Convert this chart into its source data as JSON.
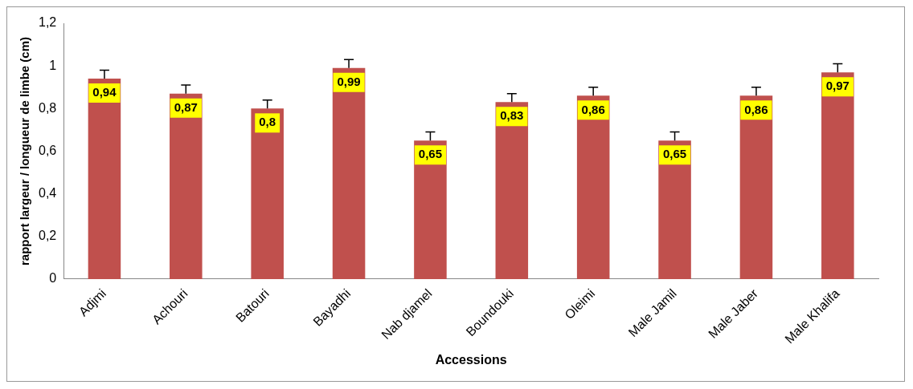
{
  "chart_data": {
    "type": "bar",
    "ylabel": "rapport largeur / longueur de limbe (cm)",
    "xlabel": "Accessions",
    "categories": [
      "Adjmi",
      "Achouri",
      "Batouri",
      "Bayadhi",
      "Nab djamel",
      "Boundouki",
      "Oleimi",
      "Male Jamil",
      "Male Jaber",
      "Male Khalifa"
    ],
    "values": [
      0.94,
      0.87,
      0.8,
      0.99,
      0.65,
      0.83,
      0.86,
      0.65,
      0.86,
      0.97
    ],
    "errors": [
      [
        0.94,
        0.98
      ],
      [
        0.87,
        0.91
      ],
      [
        0.8,
        0.84
      ],
      [
        0.99,
        1.03
      ],
      [
        0.65,
        0.69
      ],
      [
        0.83,
        0.87
      ],
      [
        0.86,
        0.9
      ],
      [
        0.65,
        0.69
      ],
      [
        0.86,
        0.9
      ],
      [
        0.97,
        1.01
      ]
    ],
    "value_labels": [
      "0,94",
      "0,87",
      "0,8",
      "0,99",
      "0,65",
      "0,83",
      "0,86",
      "0,65",
      "0,86",
      "0,97"
    ],
    "color": "#c0504d",
    "ylim": [
      0,
      1.2
    ],
    "yticks": [
      0,
      {
        "value": 0.2,
        "label": "0,2"
      },
      {
        "value": 0.4,
        "label": "0,4"
      },
      {
        "value": 0.6,
        "label": "0,6"
      },
      {
        "value": 0.8,
        "label": "0,8"
      },
      1,
      {
        "value": 1.2,
        "label": "1,2"
      }
    ],
    "grid": false,
    "legend": false
  }
}
